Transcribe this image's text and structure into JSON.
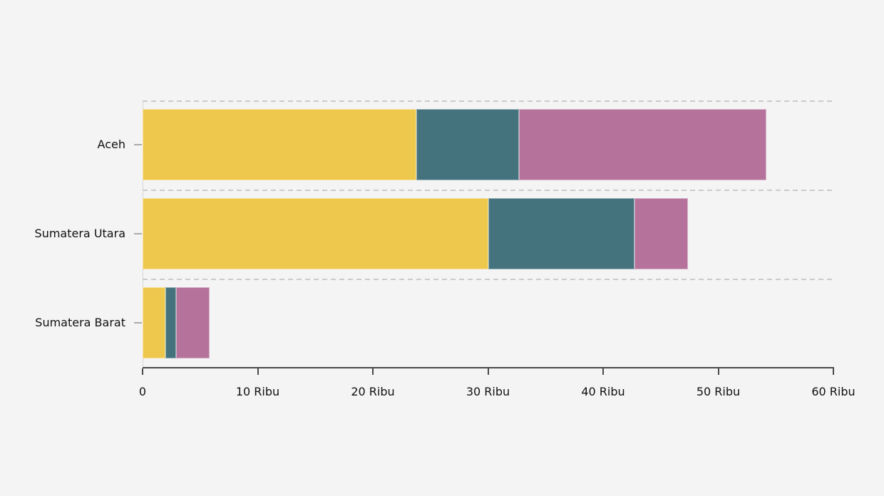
{
  "chart_data": {
    "type": "bar",
    "orientation": "horizontal",
    "stacked": true,
    "title": "",
    "legend": "none",
    "grid": "dashed horizontal band separators",
    "categories": [
      "Aceh",
      "Sumatera Utara",
      "Sumatera Barat"
    ],
    "series": [
      {
        "name": "segment-yellow",
        "color": "#EEC74D",
        "values": [
          23.8,
          30.0,
          2.0
        ]
      },
      {
        "name": "segment-teal",
        "color": "#44737E",
        "values": [
          8.9,
          12.7,
          0.9
        ]
      },
      {
        "name": "segment-pink",
        "color": "#B5739C",
        "values": [
          21.5,
          4.7,
          2.9
        ]
      }
    ],
    "totals": [
      54.2,
      47.4,
      5.8
    ],
    "x_axis": {
      "min": 0,
      "max": 60,
      "unit": "Ribu",
      "tick_values": [
        0,
        10,
        20,
        30,
        40,
        50,
        60
      ],
      "tick_labels": [
        "0",
        "10 Ribu",
        "20 Ribu",
        "30 Ribu",
        "40 Ribu",
        "50 Ribu",
        "60 Ribu"
      ]
    },
    "colors": {
      "background": "#F4F4F5",
      "gridline": "#CACACA",
      "axis": "#4A4A4A",
      "text": "#101010"
    }
  }
}
